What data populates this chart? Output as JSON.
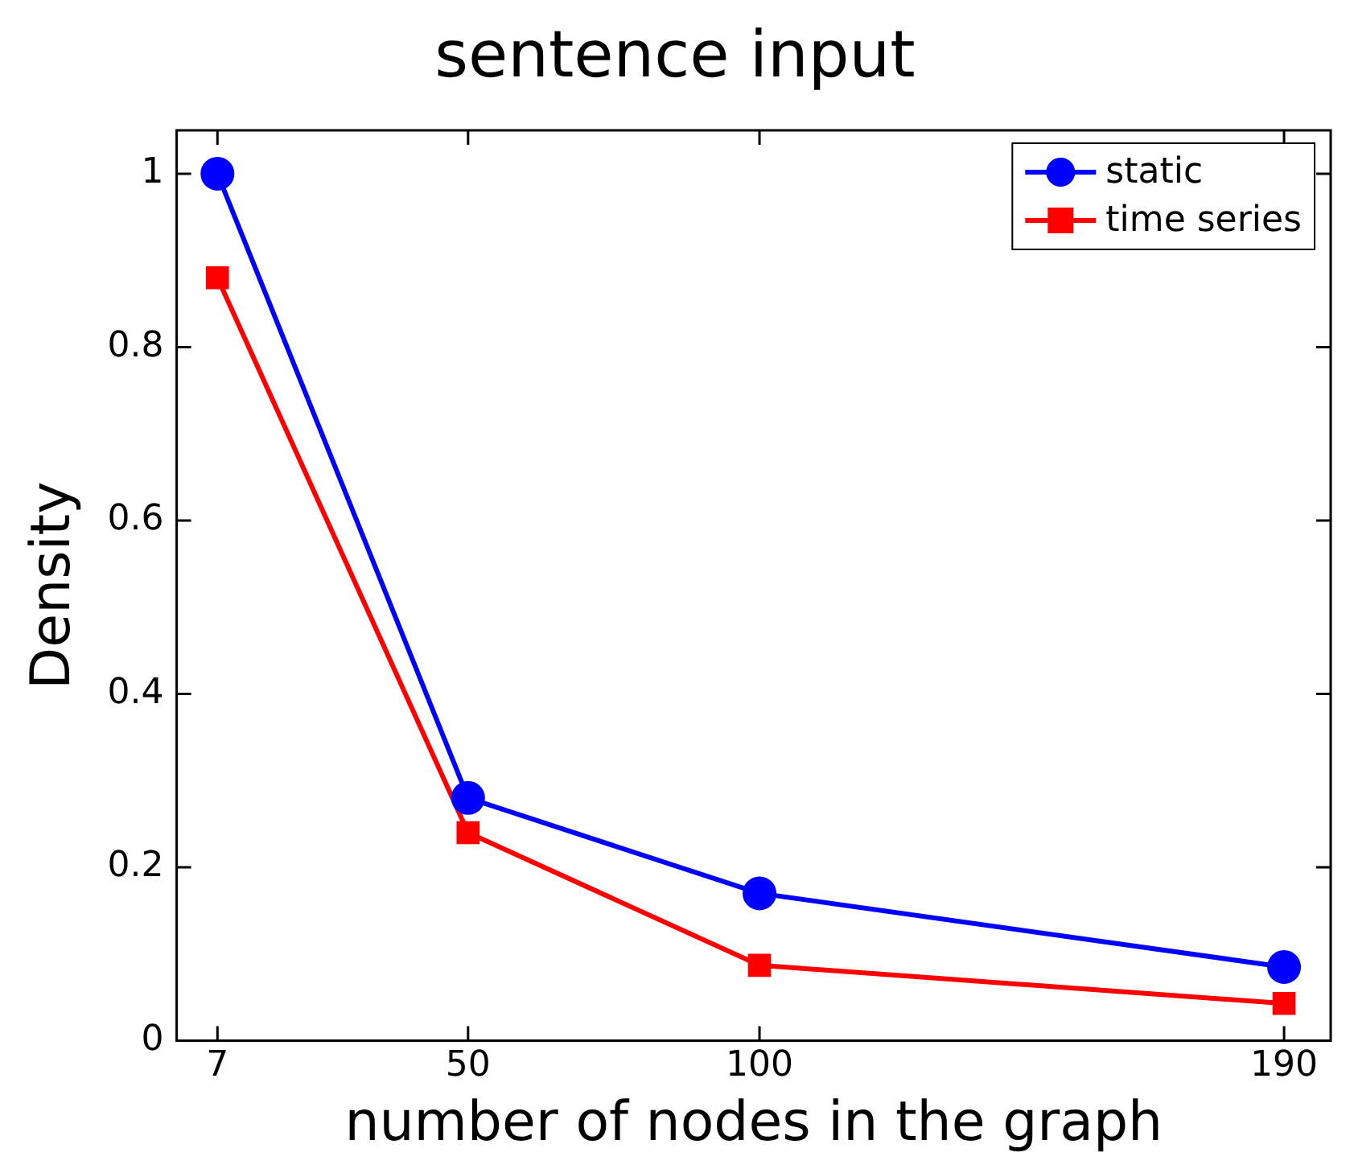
{
  "chart_data": {
    "type": "line",
    "title": "sentence input",
    "xlabel": "number of nodes in the graph",
    "ylabel": "Density",
    "x": [
      7,
      50,
      100,
      190
    ],
    "series": [
      {
        "name": "static",
        "color": "#0000ff",
        "marker": "circle",
        "values": [
          1.0,
          0.28,
          0.17,
          0.085
        ]
      },
      {
        "name": "time series",
        "color": "#ff0000",
        "marker": "square",
        "values": [
          0.88,
          0.24,
          0.087,
          0.043
        ]
      }
    ],
    "xlim": [
      0,
      198
    ],
    "xticks": [
      7,
      50,
      100,
      190
    ],
    "ylim": [
      0,
      1.05
    ],
    "yticks": [
      0,
      0.2,
      0.4,
      0.6,
      0.8,
      1
    ],
    "grid": false,
    "legend": "top right",
    "line_style": "solid"
  }
}
